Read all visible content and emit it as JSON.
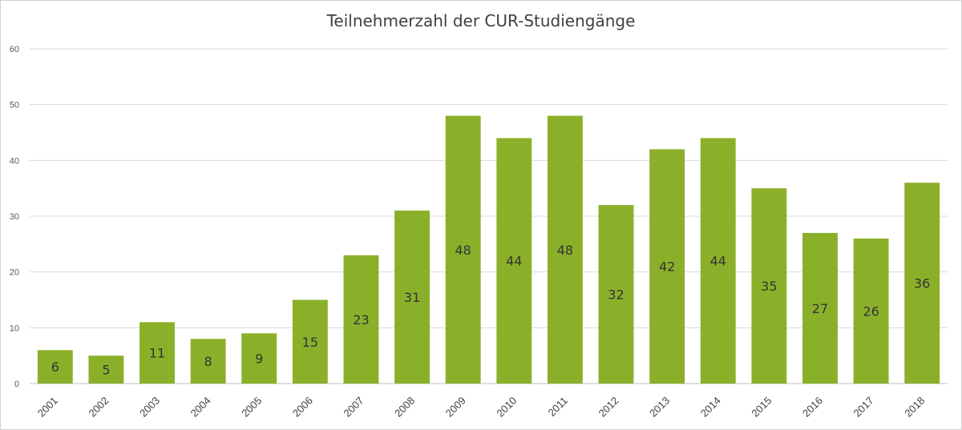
{
  "chart_data": {
    "type": "bar",
    "title": "Teilnehmerzahl der CUR-Studiengänge",
    "xlabel": "",
    "ylabel": "",
    "categories": [
      "2001",
      "2002",
      "2003",
      "2004",
      "2005",
      "2006",
      "2007",
      "2008",
      "2009",
      "2010",
      "2011",
      "2012",
      "2013",
      "2014",
      "2015",
      "2016",
      "2017",
      "2018"
    ],
    "values": [
      6,
      5,
      11,
      8,
      9,
      15,
      23,
      31,
      48,
      44,
      48,
      32,
      42,
      44,
      35,
      27,
      26,
      36
    ],
    "ylim": [
      0,
      60
    ],
    "yticks": [
      0,
      10,
      20,
      30,
      40,
      50,
      60
    ],
    "grid": true,
    "legend": "none",
    "bar_color": "#8ab02a",
    "grid_color": "#d9d9d9"
  }
}
